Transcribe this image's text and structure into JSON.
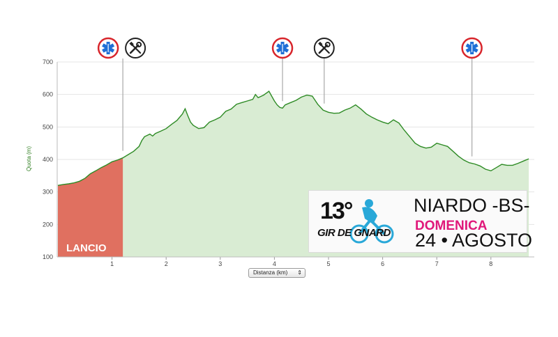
{
  "chart_data": {
    "type": "area",
    "ylabel": "Quota (m)",
    "xlabel": "Distanza (km)",
    "ylim": [
      100,
      700
    ],
    "xlim": [
      0,
      8.7
    ],
    "yticks": [
      100,
      200,
      300,
      400,
      500,
      600,
      700
    ],
    "xticks": [
      1,
      2,
      3,
      4,
      5,
      6,
      7,
      8
    ],
    "grid": true,
    "profile": {
      "x": [
        0,
        0.1,
        0.2,
        0.3,
        0.4,
        0.5,
        0.6,
        0.7,
        0.8,
        0.9,
        1.0,
        1.1,
        1.2,
        1.3,
        1.4,
        1.5,
        1.55,
        1.6,
        1.7,
        1.75,
        1.8,
        1.9,
        2.0,
        2.1,
        2.2,
        2.3,
        2.35,
        2.4,
        2.45,
        2.5,
        2.6,
        2.7,
        2.8,
        2.9,
        3.0,
        3.1,
        3.2,
        3.3,
        3.4,
        3.5,
        3.6,
        3.65,
        3.7,
        3.8,
        3.9,
        4.0,
        4.05,
        4.1,
        4.15,
        4.2,
        4.3,
        4.4,
        4.5,
        4.6,
        4.7,
        4.8,
        4.9,
        5.0,
        5.1,
        5.2,
        5.3,
        5.4,
        5.5,
        5.6,
        5.7,
        5.8,
        5.9,
        6.0,
        6.1,
        6.2,
        6.3,
        6.4,
        6.5,
        6.6,
        6.7,
        6.8,
        6.9,
        7.0,
        7.1,
        7.2,
        7.3,
        7.4,
        7.5,
        7.6,
        7.7,
        7.8,
        7.9,
        8.0,
        8.1,
        8.2,
        8.3,
        8.4,
        8.5,
        8.6,
        8.7
      ],
      "y": [
        320,
        323,
        325,
        328,
        333,
        342,
        356,
        365,
        375,
        383,
        393,
        398,
        405,
        415,
        425,
        440,
        458,
        470,
        478,
        472,
        480,
        487,
        495,
        508,
        520,
        540,
        556,
        535,
        515,
        505,
        495,
        498,
        515,
        522,
        530,
        548,
        555,
        570,
        575,
        580,
        585,
        600,
        590,
        598,
        610,
        580,
        568,
        560,
        558,
        568,
        575,
        582,
        592,
        598,
        595,
        570,
        552,
        545,
        542,
        543,
        552,
        558,
        568,
        555,
        540,
        530,
        522,
        515,
        510,
        522,
        512,
        490,
        470,
        450,
        440,
        435,
        438,
        450,
        445,
        440,
        425,
        410,
        398,
        390,
        386,
        380,
        370,
        365,
        375,
        385,
        382,
        382,
        388,
        395,
        402
      ]
    },
    "lancio_end_km": 1.2,
    "markers": [
      {
        "km": 1.2,
        "icons": [
          "medical-icon",
          "tools-icon"
        ]
      },
      {
        "km": 4.15,
        "icons": [
          "medical-icon"
        ]
      },
      {
        "km": 4.92,
        "icons": [
          "tools-icon"
        ]
      },
      {
        "km": 7.65,
        "icons": [
          "medical-icon"
        ]
      }
    ],
    "colors": {
      "area_fill": "#d9ecd3",
      "area_line": "#2e8b25",
      "lancio_fill": "#e07060",
      "medical": "#1f6fd6",
      "medical_ring": "#d8252b"
    }
  },
  "lancio_label": "LANCIO",
  "x_selector_label": "Distanza (km)",
  "banner": {
    "edition": "13°",
    "event_name": "GIR DE GNARD",
    "location": "NIARDO -BS-",
    "day": "DOMENICA",
    "date": "24 • AGOSTO"
  }
}
